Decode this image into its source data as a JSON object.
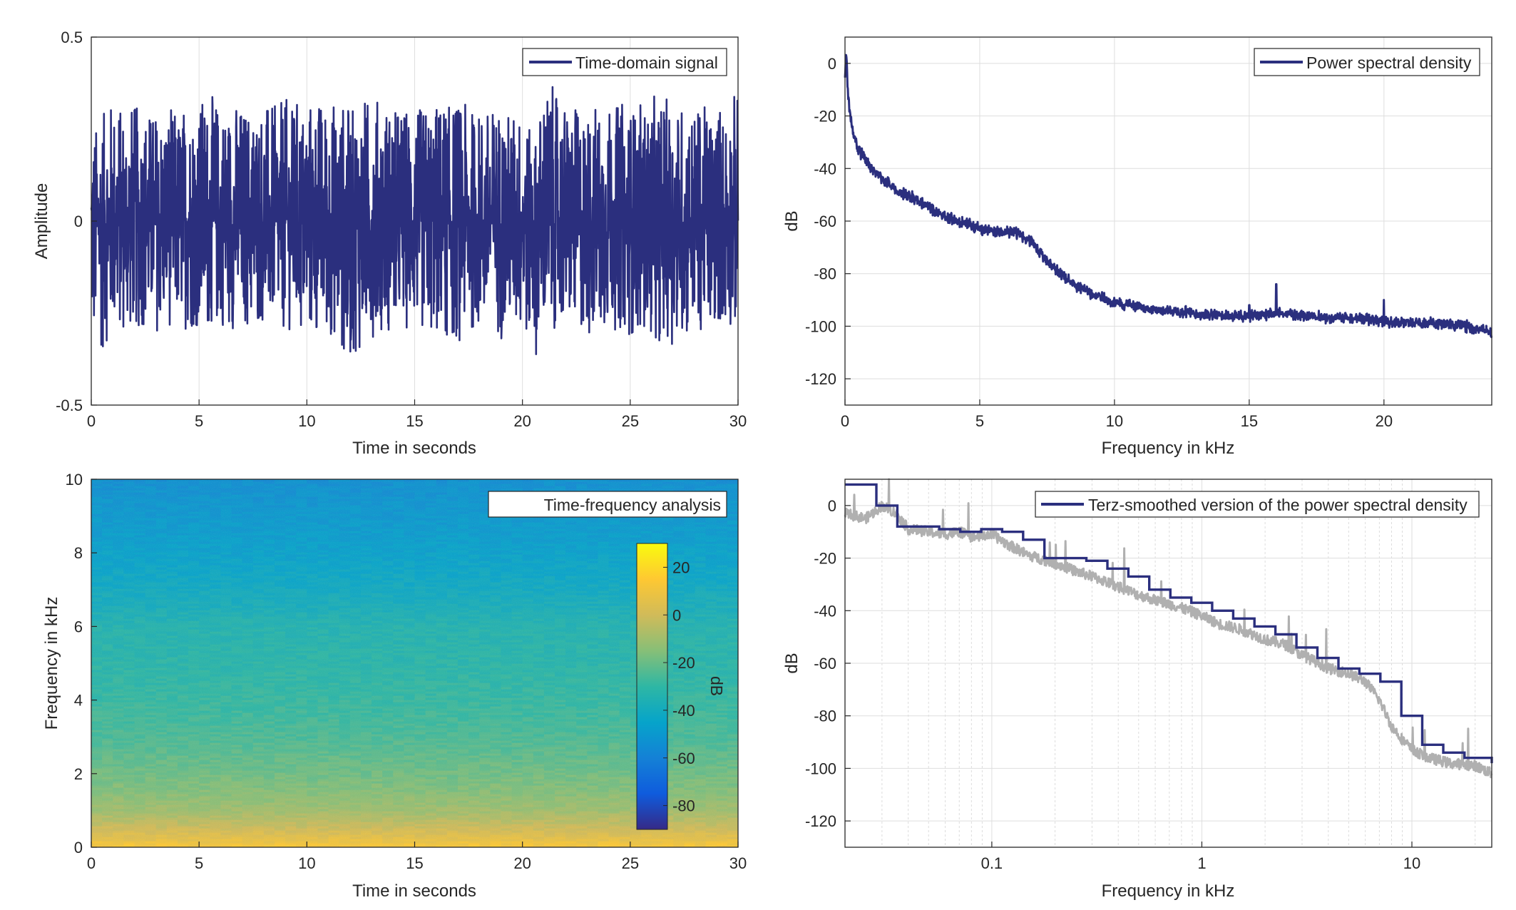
{
  "chart_data": [
    {
      "type": "line",
      "panel": "top-left",
      "xlabel": "Time in seconds",
      "ylabel": "Amplitude",
      "xlim": [
        0,
        30
      ],
      "ylim": [
        -0.5,
        0.5
      ],
      "xticks": [
        0,
        5,
        10,
        15,
        20,
        25,
        30
      ],
      "xtick_labels": [
        "0",
        "5",
        "10",
        "15",
        "20",
        "25",
        "30"
      ],
      "yticks": [
        -0.5,
        0,
        0.5
      ],
      "ytick_labels": [
        "-0.5",
        "0",
        "0.5"
      ],
      "grid": true,
      "legend": "top-right",
      "color": "#2b2f7e",
      "series": [
        {
          "name": "Time-domain signal",
          "envelope": {
            "t": [
              0,
              1,
              2,
              3,
              4,
              5,
              6,
              7,
              8,
              9,
              10,
              11,
              12,
              13,
              14,
              15,
              16,
              17,
              18,
              19,
              20,
              20.6,
              21,
              22,
              23,
              24,
              25,
              26,
              27,
              28,
              29,
              30
            ],
            "min": [
              -0.41,
              -0.33,
              -0.31,
              -0.32,
              -0.3,
              -0.32,
              -0.3,
              -0.31,
              -0.3,
              -0.32,
              -0.34,
              -0.32,
              -0.4,
              -0.33,
              -0.31,
              -0.3,
              -0.33,
              -0.35,
              -0.31,
              -0.33,
              -0.32,
              -0.38,
              -0.32,
              -0.3,
              -0.33,
              -0.3,
              -0.32,
              -0.33,
              -0.35,
              -0.32,
              -0.31,
              -0.3
            ],
            "max": [
              0.25,
              0.35,
              0.33,
              0.32,
              0.31,
              0.36,
              0.34,
              0.33,
              0.33,
              0.34,
              0.34,
              0.34,
              0.33,
              0.35,
              0.33,
              0.32,
              0.33,
              0.35,
              0.32,
              0.33,
              0.31,
              0.23,
              0.4,
              0.33,
              0.32,
              0.34,
              0.33,
              0.34,
              0.35,
              0.32,
              0.33,
              0.36
            ]
          }
        }
      ]
    },
    {
      "type": "line",
      "panel": "top-right",
      "xlabel": "Frequency in kHz",
      "ylabel": "dB",
      "xlim": [
        0,
        24
      ],
      "ylim": [
        -130,
        10
      ],
      "xticks": [
        0,
        5,
        10,
        15,
        20
      ],
      "xtick_labels": [
        "0",
        "5",
        "10",
        "15",
        "20"
      ],
      "yticks": [
        0,
        -20,
        -40,
        -60,
        -80,
        -100,
        -120
      ],
      "ytick_labels": [
        "0",
        "-20",
        "-40",
        "-60",
        "-80",
        "-100",
        "-120"
      ],
      "grid": true,
      "legend": "top-right",
      "color": "#2b2f7e",
      "series": [
        {
          "name": "Power spectral density",
          "x": [
            0,
            0.05,
            0.1,
            0.2,
            0.3,
            0.5,
            1,
            1.5,
            2,
            2.5,
            3,
            3.5,
            4,
            4.5,
            5,
            5.5,
            6,
            6.5,
            7,
            7.5,
            8,
            8.5,
            9,
            10,
            11,
            12,
            13,
            14,
            15,
            16,
            17,
            18,
            19,
            20,
            21,
            22,
            23,
            24
          ],
          "y": [
            -5,
            5,
            -10,
            -20,
            -27,
            -33,
            -40,
            -45,
            -49,
            -51,
            -54,
            -57,
            -59,
            -61,
            -63,
            -64,
            -64,
            -65,
            -69,
            -75,
            -80,
            -84,
            -87,
            -91,
            -93,
            -94,
            -95,
            -96,
            -96,
            -95,
            -96,
            -97,
            -97,
            -98,
            -99,
            -99,
            -100,
            -102
          ],
          "spread": 2.5,
          "peaks": [
            {
              "x": 16,
              "y": -84
            },
            {
              "x": 20,
              "y": -90
            },
            {
              "x": 15,
              "y": -92
            }
          ]
        }
      ]
    },
    {
      "type": "heatmap",
      "panel": "bottom-left",
      "title": "Time-frequency analysis",
      "xlabel": "Time in seconds",
      "ylabel": "Frequency in kHz",
      "xlim": [
        0,
        30
      ],
      "ylim": [
        0,
        10
      ],
      "xticks": [
        0,
        5,
        10,
        15,
        20,
        25,
        30
      ],
      "xtick_labels": [
        "0",
        "5",
        "10",
        "15",
        "20",
        "25",
        "30"
      ],
      "yticks": [
        0,
        2,
        4,
        6,
        8,
        10
      ],
      "ytick_labels": [
        "0",
        "2",
        "4",
        "6",
        "8",
        "10"
      ],
      "colormap": "parula",
      "clim": [
        -90,
        30
      ],
      "colorbar": {
        "label": "dB",
        "ticks": [
          20,
          0,
          -20,
          -40,
          -60,
          -80
        ],
        "tick_labels": [
          "20",
          "0",
          "-20",
          "-40",
          "-60",
          "-80"
        ]
      },
      "level_profile": {
        "freq_khz": [
          0,
          0.2,
          0.5,
          1,
          1.5,
          2,
          3,
          4,
          5,
          6,
          6.5,
          7,
          8,
          9,
          10
        ],
        "db": [
          15,
          8,
          0,
          -10,
          -15,
          -19,
          -25,
          -29,
          -32,
          -34,
          -38,
          -41,
          -46,
          -50,
          -54
        ]
      },
      "color_stops": [
        "#352a87",
        "#0f5cdd",
        "#1481d6",
        "#06a4ca",
        "#2eb7a4",
        "#87bf77",
        "#d1bb59",
        "#fec832",
        "#f9fb0e"
      ]
    },
    {
      "type": "line",
      "panel": "bottom-right",
      "xlabel": "Frequency in kHz",
      "ylabel": "dB",
      "xscale": "log",
      "xlim": [
        0.02,
        24
      ],
      "ylim": [
        -130,
        10
      ],
      "xticks": [
        0.1,
        1,
        10
      ],
      "xtick_labels": [
        "0.1",
        "1",
        "10"
      ],
      "yticks": [
        0,
        -20,
        -40,
        -60,
        -80,
        -100,
        -120
      ],
      "ytick_labels": [
        "0",
        "-20",
        "-40",
        "-60",
        "-80",
        "-100",
        "-120"
      ],
      "grid": true,
      "legend": "top-right",
      "series": [
        {
          "name": "",
          "color": "#b0b0b0",
          "x": [
            0.02,
            0.025,
            0.03,
            0.035,
            0.04,
            0.05,
            0.06,
            0.07,
            0.08,
            0.1,
            0.12,
            0.15,
            0.2,
            0.25,
            0.3,
            0.4,
            0.5,
            0.6,
            0.8,
            1,
            1.2,
            1.5,
            2,
            2.5,
            3,
            4,
            5,
            6,
            7,
            8,
            9,
            10,
            12,
            15,
            20,
            24
          ],
          "y": [
            -3,
            -5,
            0,
            -3,
            -9,
            -10,
            -11,
            -10,
            -12,
            -11,
            -15,
            -19,
            -22,
            -25,
            -27,
            -31,
            -34,
            -36,
            -39,
            -42,
            -45,
            -47,
            -51,
            -53,
            -57,
            -62,
            -64,
            -67,
            -74,
            -84,
            -89,
            -93,
            -96,
            -98,
            -99,
            -102
          ],
          "spread": 2
        },
        {
          "name": "Terz-smoothed version of the power spectral density",
          "color": "#2b2f7e",
          "step_edges": [
            0.02,
            0.0282,
            0.0355,
            0.0447,
            0.0562,
            0.0708,
            0.0891,
            0.112,
            0.141,
            0.178,
            0.224,
            0.282,
            0.355,
            0.447,
            0.562,
            0.708,
            0.891,
            1.12,
            1.41,
            1.78,
            2.24,
            2.82,
            3.55,
            4.47,
            5.62,
            7.08,
            8.91,
            11.2,
            14.1,
            17.8,
            24
          ],
          "step_values": [
            8,
            0,
            -8,
            -8,
            -9,
            -10,
            -9,
            -10,
            -13,
            -20,
            -20,
            -21,
            -24,
            -27,
            -32,
            -35,
            -37,
            -40,
            -43,
            -46,
            -49,
            -54,
            -58,
            -62,
            -64,
            -67,
            -80,
            -91,
            -94,
            -96,
            -98
          ]
        }
      ]
    }
  ]
}
